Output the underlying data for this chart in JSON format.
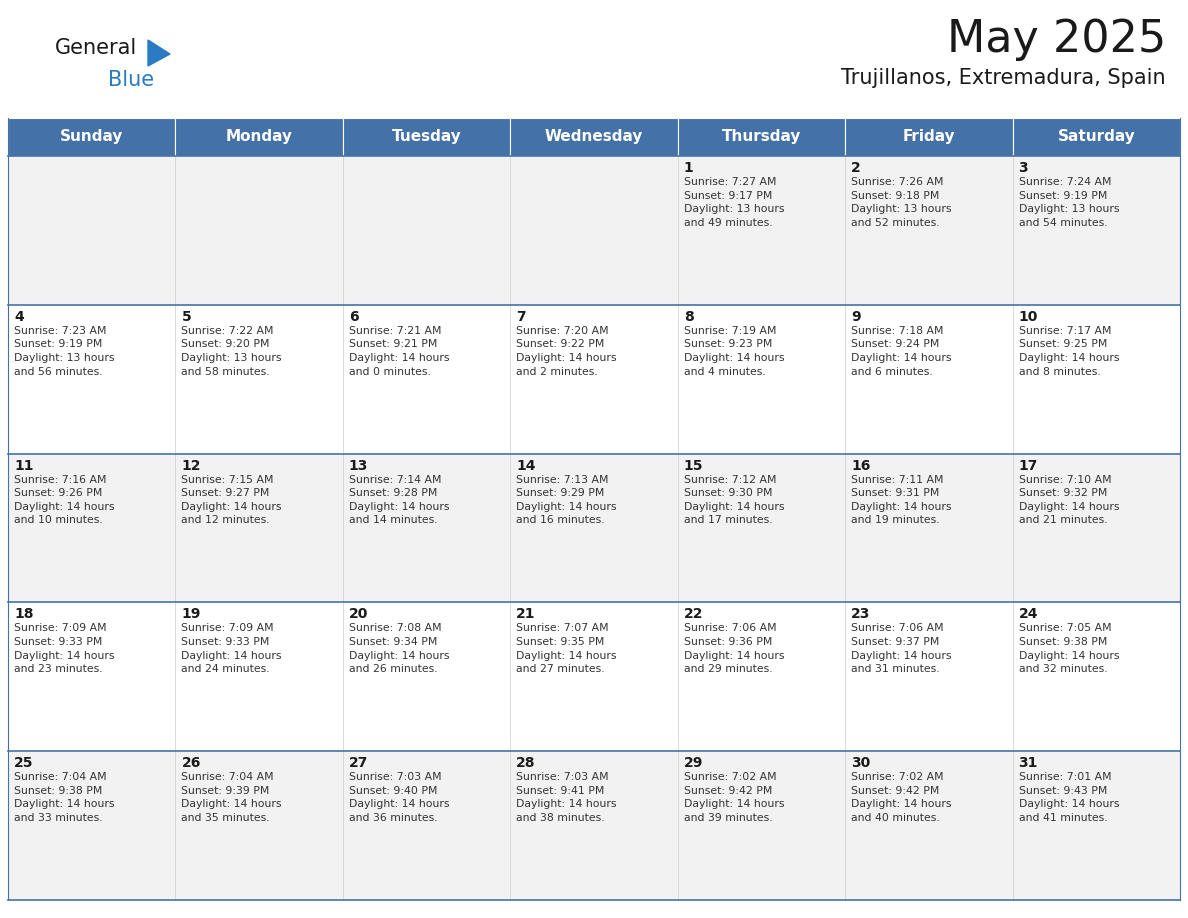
{
  "title": "May 2025",
  "subtitle": "Trujillanos, Extremadura, Spain",
  "header_color": "#4472a8",
  "header_text_color": "#ffffff",
  "row_colors": [
    "#f2f2f2",
    "#ffffff",
    "#f2f2f2",
    "#ffffff",
    "#f2f2f2"
  ],
  "border_color": "#4472a8",
  "day_names": [
    "Sunday",
    "Monday",
    "Tuesday",
    "Wednesday",
    "Thursday",
    "Friday",
    "Saturday"
  ],
  "title_fontsize": 32,
  "subtitle_fontsize": 15,
  "header_fontsize": 11,
  "cell_fontsize": 7.8,
  "day_num_fontsize": 10,
  "logo_general_color": "#1a1a1a",
  "logo_blue_color": "#2b7bc4",
  "weeks": [
    [
      {
        "day": null,
        "info": null
      },
      {
        "day": null,
        "info": null
      },
      {
        "day": null,
        "info": null
      },
      {
        "day": null,
        "info": null
      },
      {
        "day": 1,
        "info": "Sunrise: 7:27 AM\nSunset: 9:17 PM\nDaylight: 13 hours\nand 49 minutes."
      },
      {
        "day": 2,
        "info": "Sunrise: 7:26 AM\nSunset: 9:18 PM\nDaylight: 13 hours\nand 52 minutes."
      },
      {
        "day": 3,
        "info": "Sunrise: 7:24 AM\nSunset: 9:19 PM\nDaylight: 13 hours\nand 54 minutes."
      }
    ],
    [
      {
        "day": 4,
        "info": "Sunrise: 7:23 AM\nSunset: 9:19 PM\nDaylight: 13 hours\nand 56 minutes."
      },
      {
        "day": 5,
        "info": "Sunrise: 7:22 AM\nSunset: 9:20 PM\nDaylight: 13 hours\nand 58 minutes."
      },
      {
        "day": 6,
        "info": "Sunrise: 7:21 AM\nSunset: 9:21 PM\nDaylight: 14 hours\nand 0 minutes."
      },
      {
        "day": 7,
        "info": "Sunrise: 7:20 AM\nSunset: 9:22 PM\nDaylight: 14 hours\nand 2 minutes."
      },
      {
        "day": 8,
        "info": "Sunrise: 7:19 AM\nSunset: 9:23 PM\nDaylight: 14 hours\nand 4 minutes."
      },
      {
        "day": 9,
        "info": "Sunrise: 7:18 AM\nSunset: 9:24 PM\nDaylight: 14 hours\nand 6 minutes."
      },
      {
        "day": 10,
        "info": "Sunrise: 7:17 AM\nSunset: 9:25 PM\nDaylight: 14 hours\nand 8 minutes."
      }
    ],
    [
      {
        "day": 11,
        "info": "Sunrise: 7:16 AM\nSunset: 9:26 PM\nDaylight: 14 hours\nand 10 minutes."
      },
      {
        "day": 12,
        "info": "Sunrise: 7:15 AM\nSunset: 9:27 PM\nDaylight: 14 hours\nand 12 minutes."
      },
      {
        "day": 13,
        "info": "Sunrise: 7:14 AM\nSunset: 9:28 PM\nDaylight: 14 hours\nand 14 minutes."
      },
      {
        "day": 14,
        "info": "Sunrise: 7:13 AM\nSunset: 9:29 PM\nDaylight: 14 hours\nand 16 minutes."
      },
      {
        "day": 15,
        "info": "Sunrise: 7:12 AM\nSunset: 9:30 PM\nDaylight: 14 hours\nand 17 minutes."
      },
      {
        "day": 16,
        "info": "Sunrise: 7:11 AM\nSunset: 9:31 PM\nDaylight: 14 hours\nand 19 minutes."
      },
      {
        "day": 17,
        "info": "Sunrise: 7:10 AM\nSunset: 9:32 PM\nDaylight: 14 hours\nand 21 minutes."
      }
    ],
    [
      {
        "day": 18,
        "info": "Sunrise: 7:09 AM\nSunset: 9:33 PM\nDaylight: 14 hours\nand 23 minutes."
      },
      {
        "day": 19,
        "info": "Sunrise: 7:09 AM\nSunset: 9:33 PM\nDaylight: 14 hours\nand 24 minutes."
      },
      {
        "day": 20,
        "info": "Sunrise: 7:08 AM\nSunset: 9:34 PM\nDaylight: 14 hours\nand 26 minutes."
      },
      {
        "day": 21,
        "info": "Sunrise: 7:07 AM\nSunset: 9:35 PM\nDaylight: 14 hours\nand 27 minutes."
      },
      {
        "day": 22,
        "info": "Sunrise: 7:06 AM\nSunset: 9:36 PM\nDaylight: 14 hours\nand 29 minutes."
      },
      {
        "day": 23,
        "info": "Sunrise: 7:06 AM\nSunset: 9:37 PM\nDaylight: 14 hours\nand 31 minutes."
      },
      {
        "day": 24,
        "info": "Sunrise: 7:05 AM\nSunset: 9:38 PM\nDaylight: 14 hours\nand 32 minutes."
      }
    ],
    [
      {
        "day": 25,
        "info": "Sunrise: 7:04 AM\nSunset: 9:38 PM\nDaylight: 14 hours\nand 33 minutes."
      },
      {
        "day": 26,
        "info": "Sunrise: 7:04 AM\nSunset: 9:39 PM\nDaylight: 14 hours\nand 35 minutes."
      },
      {
        "day": 27,
        "info": "Sunrise: 7:03 AM\nSunset: 9:40 PM\nDaylight: 14 hours\nand 36 minutes."
      },
      {
        "day": 28,
        "info": "Sunrise: 7:03 AM\nSunset: 9:41 PM\nDaylight: 14 hours\nand 38 minutes."
      },
      {
        "day": 29,
        "info": "Sunrise: 7:02 AM\nSunset: 9:42 PM\nDaylight: 14 hours\nand 39 minutes."
      },
      {
        "day": 30,
        "info": "Sunrise: 7:02 AM\nSunset: 9:42 PM\nDaylight: 14 hours\nand 40 minutes."
      },
      {
        "day": 31,
        "info": "Sunrise: 7:01 AM\nSunset: 9:43 PM\nDaylight: 14 hours\nand 41 minutes."
      }
    ]
  ]
}
